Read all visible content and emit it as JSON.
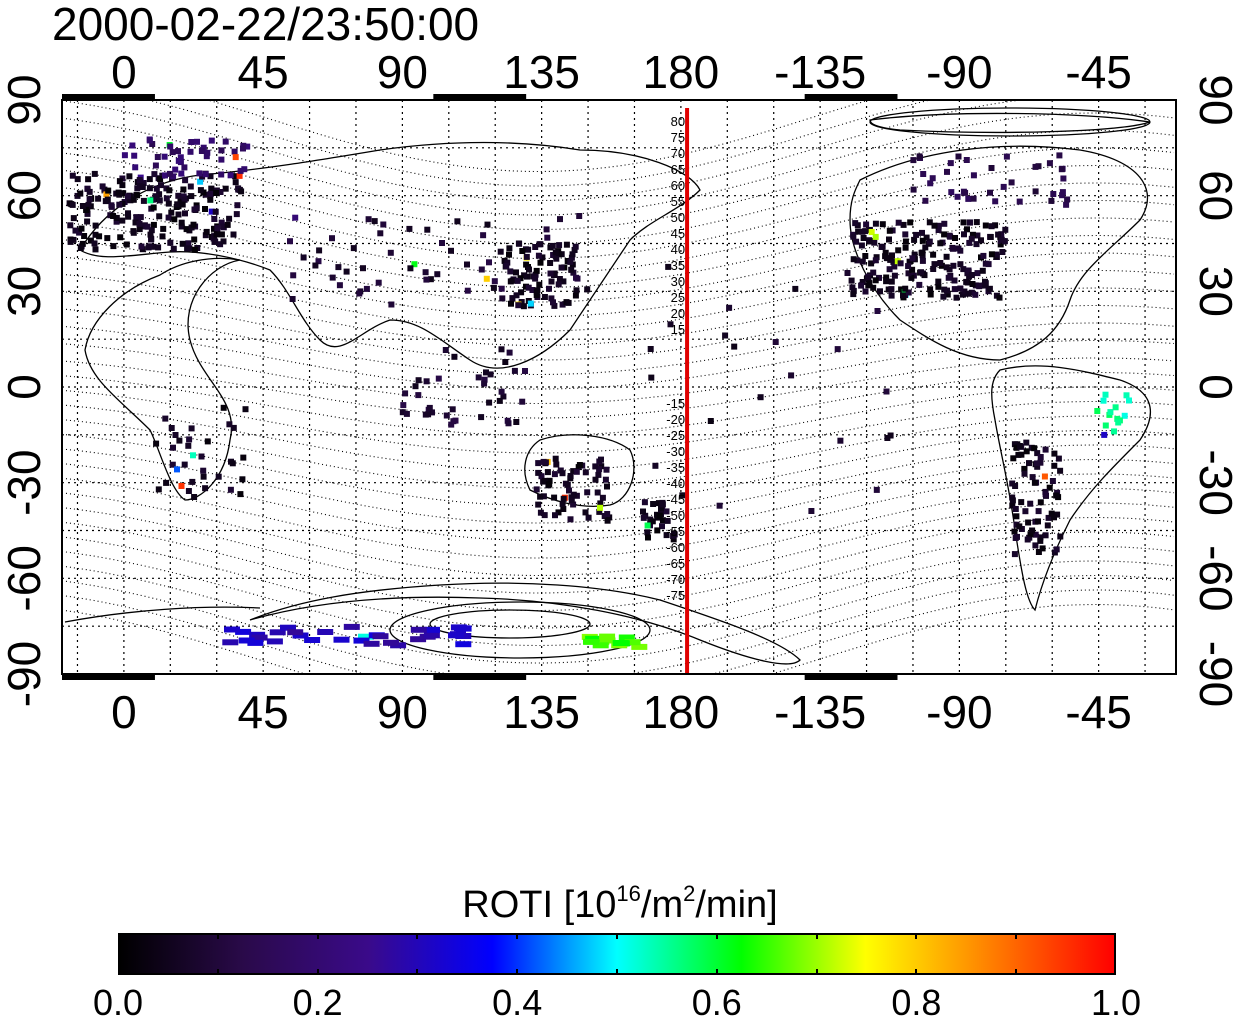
{
  "title": "2000-02-22/23:50:00",
  "map": {
    "lon_ticks_top": [
      "0",
      "45",
      "90",
      "135",
      "180",
      "-135",
      "-90",
      "-45"
    ],
    "lon_ticks_bottom": [
      "0",
      "45",
      "90",
      "135",
      "180",
      "-135",
      "-90",
      "-45"
    ],
    "lat_ticks_left": [
      "90",
      "60",
      "30",
      "0",
      "-30",
      "-60",
      "-90"
    ],
    "lat_ticks_right": [
      "90",
      "60",
      "30",
      "0",
      "-30",
      "-60",
      "-90"
    ],
    "meridian_longitude": 182,
    "meridian_color": "#e00000",
    "meridian_labels_north": [
      "80",
      "75",
      "70",
      "65",
      "60",
      "55",
      "50",
      "45",
      "40",
      "35",
      "30",
      "25",
      "20",
      "15"
    ],
    "meridian_labels_south": [
      "-15",
      "-20",
      "-25",
      "-30",
      "-35",
      "-40",
      "-45",
      "-50",
      "-55",
      "-60",
      "-65",
      "-70",
      "-75"
    ]
  },
  "colorbar": {
    "title_main": "ROTI  [10",
    "title_sup1": "16",
    "title_mid": "/m",
    "title_sup2": "2",
    "title_end": "/min]",
    "ticks": [
      "0.0",
      "0.2",
      "0.4",
      "0.6",
      "0.8",
      "1.0"
    ],
    "range": [
      0.0,
      1.0
    ],
    "colors": [
      "#000000",
      "#2a0a4a",
      "#3a0a8a",
      "#0000ff",
      "#00ffff",
      "#00ff00",
      "#ffff00",
      "#ff8000",
      "#ff0000"
    ]
  },
  "observation_clusters": [
    {
      "lon": 10,
      "lat": 55,
      "spread_lon": 28,
      "spread_lat": 12,
      "count": 220,
      "value": 0.05
    },
    {
      "lon": 20,
      "lat": 72,
      "spread_lon": 20,
      "spread_lat": 6,
      "count": 45,
      "value": 0.18
    },
    {
      "lon": 135,
      "lat": 35,
      "spread_lon": 12,
      "spread_lat": 10,
      "count": 90,
      "value": 0.05
    },
    {
      "lon": -100,
      "lat": 40,
      "spread_lon": 25,
      "spread_lat": 12,
      "count": 210,
      "value": 0.05
    },
    {
      "lon": -80,
      "lat": 65,
      "spread_lon": 25,
      "spread_lat": 8,
      "count": 40,
      "value": 0.12
    },
    {
      "lon": 145,
      "lat": -32,
      "spread_lon": 12,
      "spread_lat": 10,
      "count": 70,
      "value": 0.05
    },
    {
      "lon": 172,
      "lat": -42,
      "spread_lon": 6,
      "spread_lat": 6,
      "count": 30,
      "value": 0.05
    },
    {
      "lon": -65,
      "lat": -35,
      "spread_lon": 8,
      "spread_lat": 18,
      "count": 80,
      "value": 0.05
    },
    {
      "lon": 100,
      "lat": 40,
      "spread_lon": 50,
      "spread_lat": 15,
      "count": 60,
      "value": 0.08
    },
    {
      "lon": 70,
      "lat": -78,
      "spread_lon": 40,
      "spread_lat": 3,
      "count": 35,
      "value": 0.3
    },
    {
      "lon": 160,
      "lat": -80,
      "spread_lon": 10,
      "spread_lat": 2,
      "count": 14,
      "value": 0.65
    },
    {
      "lon": -40,
      "lat": -10,
      "spread_lon": 6,
      "spread_lat": 8,
      "count": 15,
      "value": 0.55
    },
    {
      "lon": 25,
      "lat": -20,
      "spread_lon": 15,
      "spread_lat": 15,
      "count": 35,
      "value": 0.05
    },
    {
      "lon": 110,
      "lat": 0,
      "spread_lon": 20,
      "spread_lat": 12,
      "count": 40,
      "value": 0.08
    },
    {
      "lon": -150,
      "lat": 0,
      "spread_lon": 40,
      "spread_lat": 40,
      "count": 25,
      "value": 0.07
    }
  ]
}
